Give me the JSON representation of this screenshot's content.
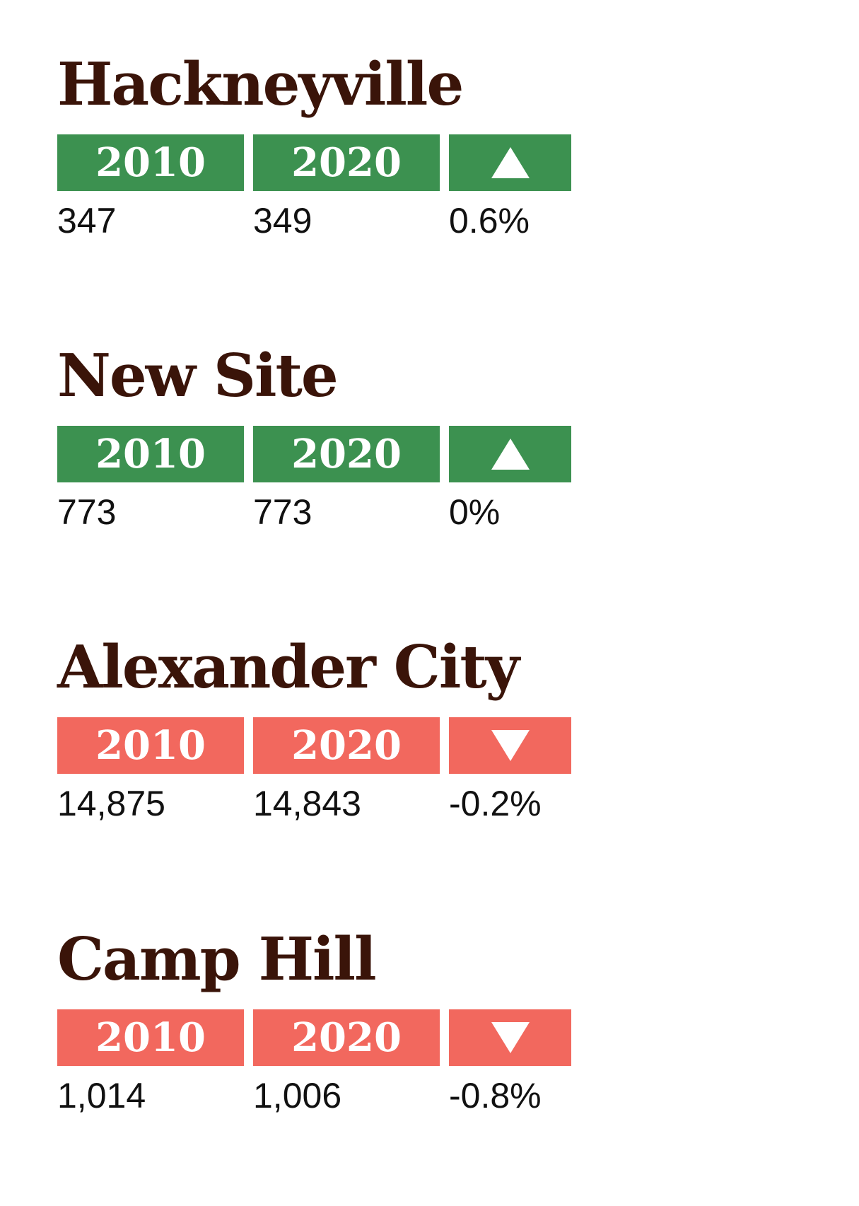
{
  "cities": [
    {
      "name": "Hackneyville",
      "trend": "up",
      "trend_icon": "triangle-up-icon",
      "color": "#3c9150",
      "header_2010": "2010",
      "header_2020": "2020",
      "pop_2010": "347",
      "pop_2020": "349",
      "change": "0.6%"
    },
    {
      "name": "New Site",
      "trend": "up",
      "trend_icon": "triangle-up-icon",
      "color": "#3c9150",
      "header_2010": "2010",
      "header_2020": "2020",
      "pop_2010": "773",
      "pop_2020": "773",
      "change": "0%"
    },
    {
      "name": "Alexander City",
      "trend": "down",
      "trend_icon": "triangle-down-icon",
      "color": "#f2685e",
      "header_2010": "2010",
      "header_2020": "2020",
      "pop_2010": "14,875",
      "pop_2020": "14,843",
      "change": "-0.2%"
    },
    {
      "name": "Camp Hill",
      "trend": "down",
      "trend_icon": "triangle-down-icon",
      "color": "#f2685e",
      "header_2010": "2010",
      "header_2020": "2020",
      "pop_2010": "1,014",
      "pop_2020": "1,006",
      "change": "-0.8%"
    }
  ],
  "text_color": "#3a1409"
}
